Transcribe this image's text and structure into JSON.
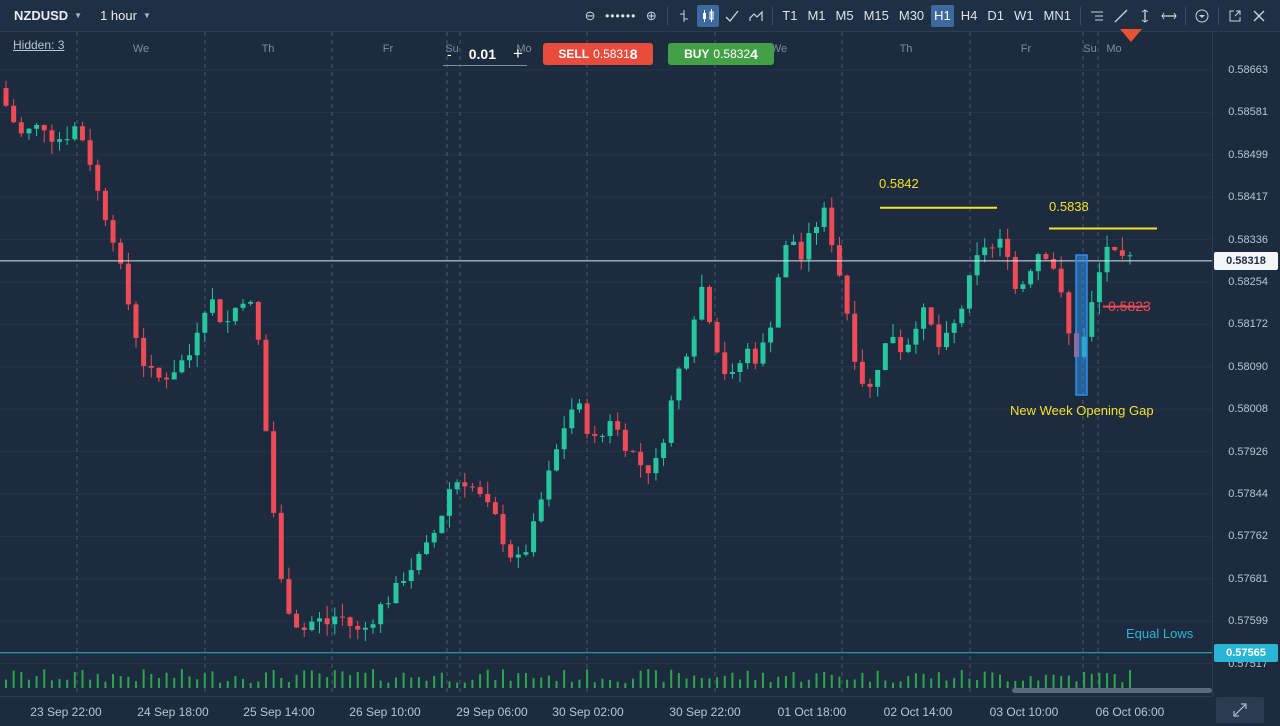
{
  "toolbar": {
    "symbol": "NZDUSD",
    "interval": "1 hour",
    "timeframes": [
      {
        "label": "T1",
        "active": false
      },
      {
        "label": "M1",
        "active": false
      },
      {
        "label": "M5",
        "active": false
      },
      {
        "label": "M15",
        "active": false
      },
      {
        "label": "M30",
        "active": false
      },
      {
        "label": "H1",
        "active": true
      },
      {
        "label": "H4",
        "active": false
      },
      {
        "label": "D1",
        "active": false
      },
      {
        "label": "W1",
        "active": false
      },
      {
        "label": "MN1",
        "active": false
      }
    ],
    "zoom_out_icon": "zoom-out-icon",
    "zoom_in_icon": "zoom-in-icon"
  },
  "hidden_link": "Hidden: 3",
  "trade": {
    "lot_minus": "-",
    "lot_value": "0.01",
    "lot_plus": "+",
    "sell_label": "SELL",
    "sell_price": "0.5831",
    "sell_price_big": "8",
    "buy_label": "BUY",
    "buy_price": "0.5832",
    "buy_price_big": "4"
  },
  "day_labels": [
    "We",
    "Th",
    "Fr",
    "Su",
    "Mo",
    "We",
    "Th",
    "Fr",
    "Su",
    "Mo"
  ],
  "price_axis": [
    "0.58663",
    "0.58581",
    "0.58499",
    "0.58417",
    "0.58336",
    "0.58254",
    "0.58172",
    "0.58090",
    "0.58008",
    "0.57926",
    "0.57844",
    "0.57762",
    "0.57681",
    "0.57599",
    "0.57517"
  ],
  "current_price": "0.58318",
  "equal_lows_price": "0.57565",
  "time_axis": [
    "23 Sep 22:00",
    "24 Sep 18:00",
    "25 Sep 14:00",
    "26 Sep 10:00",
    "29 Sep 06:00",
    "30 Sep 02:00",
    "30 Sep 22:00",
    "01 Oct 18:00",
    "02 Oct 14:00",
    "03 Oct 10:00",
    "06 Oct 06:00"
  ],
  "annotations": {
    "high1": "0.5842",
    "high2": "0.5838",
    "low1": "0.5823",
    "gap": "New Week Opening Gap",
    "equal_lows": "Equal Lows"
  },
  "colors": {
    "background": "#1c2b3e",
    "bull": "#26c6a0",
    "bear": "#ef4b56",
    "annotation_yellow": "#f5e12c",
    "equal_lows_line": "#29b6d6",
    "gap_box": "#2f8ee8",
    "volume": "#2aa84a"
  },
  "chart_data": {
    "type": "candlestick",
    "timeframe": "1 hour",
    "symbol": "NZDUSD",
    "ylim": [
      0.5748,
      0.587
    ],
    "key_levels": {
      "current": 0.58318,
      "high_a": 0.5842,
      "high_b": 0.5838,
      "low_after_gap": 0.5823,
      "equal_lows": 0.57565
    },
    "close_path": [
      0.5865,
      0.586,
      0.5856,
      0.5857,
      0.5858,
      0.5855,
      0.5856,
      0.5858,
      0.5852,
      0.5843,
      0.5838,
      0.5828,
      0.5819,
      0.5811,
      0.5809,
      0.581,
      0.5812,
      0.5814,
      0.5823,
      0.5824,
      0.5819,
      0.5823,
      0.5826,
      0.5816,
      0.579,
      0.577,
      0.5763,
      0.5761,
      0.5763,
      0.5762,
      0.5764,
      0.5762,
      0.576,
      0.5763,
      0.5766,
      0.5768,
      0.5772,
      0.5774,
      0.5777,
      0.5782,
      0.5789,
      0.579,
      0.5788,
      0.5785,
      0.5782,
      0.5776,
      0.5774,
      0.5778,
      0.5786,
      0.5793,
      0.58,
      0.5805,
      0.58,
      0.5796,
      0.5802,
      0.5798,
      0.5795,
      0.5792,
      0.5792,
      0.58,
      0.581,
      0.5816,
      0.5828,
      0.582,
      0.5811,
      0.5809,
      0.5815,
      0.5813,
      0.5817,
      0.583,
      0.5837,
      0.5832,
      0.5838,
      0.5841,
      0.5833,
      0.5822,
      0.581,
      0.5807,
      0.5814,
      0.5818,
      0.5814,
      0.582,
      0.5822,
      0.5815,
      0.5817,
      0.5822,
      0.5829,
      0.5835,
      0.5834,
      0.5836,
      0.5825,
      0.583,
      0.5834,
      0.5833,
      0.5824,
      0.5813,
      0.5817,
      0.5827,
      0.5835,
      0.5831,
      0.5832
    ]
  }
}
